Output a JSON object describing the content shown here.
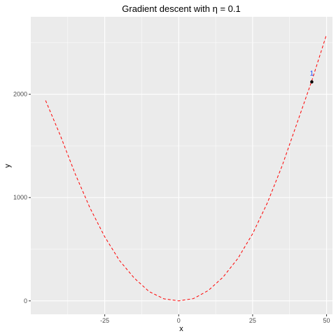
{
  "chart_data": {
    "type": "line",
    "title": "Gradient descent with η = 0.1",
    "xlabel": "x",
    "ylabel": "y",
    "xlim": [
      -50,
      52
    ],
    "ylim": [
      -130,
      2750
    ],
    "x_ticks": [
      -25,
      0,
      25,
      50
    ],
    "x_tick_labels": [
      "-25",
      "0",
      "25",
      "50"
    ],
    "y_ticks": [
      0,
      1000,
      2000
    ],
    "y_tick_labels": [
      "0",
      "1000",
      "2000"
    ],
    "grid": true,
    "background": "#ebebeb",
    "series": [
      {
        "style": "dashed",
        "color": "#ff0000",
        "x": [
          -45,
          -40,
          -35,
          -30,
          -25,
          -20,
          -15,
          -10,
          -5,
          0,
          5,
          10,
          15,
          20,
          25,
          30,
          35,
          40,
          45,
          50
        ],
        "y": [
          1940,
          1600,
          1230,
          900,
          620,
          390,
          220,
          90,
          20,
          0,
          22,
          100,
          230,
          410,
          650,
          950,
          1310,
          1720,
          2130,
          2580
        ]
      }
    ],
    "points": [
      {
        "x": 45,
        "y": 2120,
        "color": "#000000"
      }
    ],
    "annotations": [
      {
        "text": "1",
        "x": 45,
        "y": 2200,
        "color": "#1f4fff"
      }
    ]
  }
}
